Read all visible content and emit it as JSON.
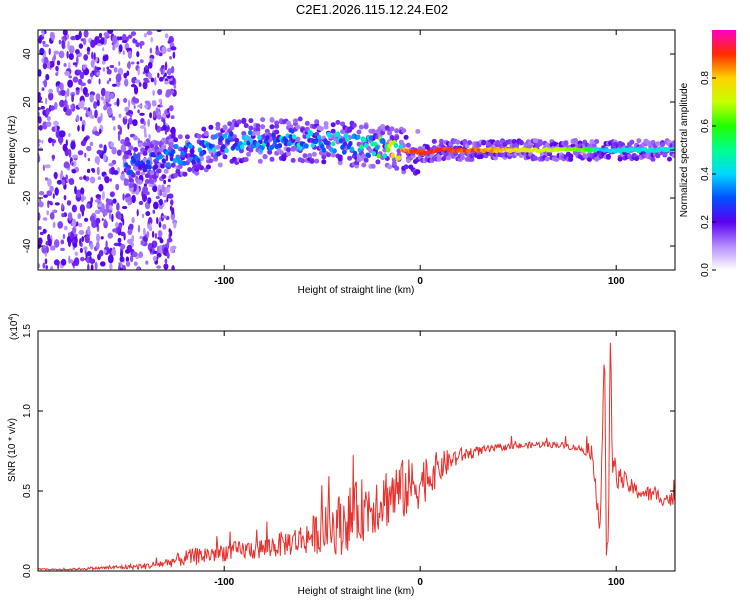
{
  "title": "C2E1.2026.115.12.24.E02",
  "chart_data": [
    {
      "type": "heatmap",
      "xlabel": "Height of straight line (km)",
      "ylabel": "Frequency (Hz)",
      "xlim": [
        -195,
        130
      ],
      "ylim": [
        -50,
        50
      ],
      "x_ticks": [
        -100,
        0,
        100
      ],
      "y_ticks": [
        -40,
        -20,
        0,
        20,
        40
      ],
      "colorbar": {
        "label": "Normalized spectral amplitude",
        "range": [
          0.0,
          1.0
        ],
        "ticks": [
          0.0,
          0.2,
          0.4,
          0.6,
          0.8
        ],
        "tick_labels": [
          "0.0",
          "0.2",
          "0.4",
          "0.6",
          "0.8"
        ]
      },
      "ridge": [
        {
          "x": -140,
          "f": -6,
          "amp": 0.3
        },
        {
          "x": -130,
          "f": -3,
          "amp": 0.35
        },
        {
          "x": -120,
          "f": -2,
          "amp": 0.38
        },
        {
          "x": -110,
          "f": 0,
          "amp": 0.4
        },
        {
          "x": -100,
          "f": 3,
          "amp": 0.4
        },
        {
          "x": -90,
          "f": 4,
          "amp": 0.42
        },
        {
          "x": -80,
          "f": 4,
          "amp": 0.45
        },
        {
          "x": -70,
          "f": 5,
          "amp": 0.45
        },
        {
          "x": -60,
          "f": 4,
          "amp": 0.45
        },
        {
          "x": -50,
          "f": 4,
          "amp": 0.45
        },
        {
          "x": -40,
          "f": 3,
          "amp": 0.48
        },
        {
          "x": -30,
          "f": 2,
          "amp": 0.5
        },
        {
          "x": -20,
          "f": 1,
          "amp": 0.6
        },
        {
          "x": -10,
          "f": 0,
          "amp": 0.85
        },
        {
          "x": 0,
          "f": -1,
          "amp": 0.95
        },
        {
          "x": 10,
          "f": 0,
          "amp": 0.95
        },
        {
          "x": 30,
          "f": 0,
          "amp": 0.9
        },
        {
          "x": 50,
          "f": 0,
          "amp": 0.8
        },
        {
          "x": 70,
          "f": 0,
          "amp": 0.72
        },
        {
          "x": 85,
          "f": 0,
          "amp": 0.65
        },
        {
          "x": 92,
          "f": 0,
          "amp": 0.4
        },
        {
          "x": 100,
          "f": 0,
          "amp": 0.45
        },
        {
          "x": 115,
          "f": 0,
          "amp": 0.45
        },
        {
          "x": 130,
          "f": 0,
          "amp": 0.45
        }
      ]
    },
    {
      "type": "line",
      "xlabel": "Height of straight line (km)",
      "ylabel": "SNR (10 * v/v)",
      "scale_label": "(x10",
      "scale_exponent": "4",
      "xlim": [
        -195,
        130
      ],
      "ylim": [
        0.0,
        1.5
      ],
      "x_ticks": [
        -100,
        0,
        100
      ],
      "y_ticks": [
        0.0,
        0.5,
        1.0,
        1.5
      ],
      "y_tick_labels": [
        "0.0",
        "0.5",
        "1.0",
        "1.5"
      ],
      "color": "#e8302c",
      "series": [
        {
          "name": "SNR",
          "x": [
            -195,
            -180,
            -160,
            -140,
            -130,
            -120,
            -110,
            -100,
            -90,
            -80,
            -70,
            -60,
            -50,
            -40,
            -30,
            -20,
            -10,
            0,
            10,
            20,
            30,
            40,
            50,
            60,
            70,
            80,
            85,
            88,
            90,
            92,
            93,
            94,
            95,
            96,
            97,
            98,
            100,
            105,
            110,
            120,
            130
          ],
          "values": [
            0.01,
            0.01,
            0.02,
            0.03,
            0.05,
            0.08,
            0.1,
            0.12,
            0.13,
            0.14,
            0.17,
            0.2,
            0.25,
            0.3,
            0.38,
            0.45,
            0.5,
            0.55,
            0.65,
            0.72,
            0.75,
            0.77,
            0.78,
            0.79,
            0.79,
            0.77,
            0.75,
            0.65,
            0.5,
            0.3,
            0.9,
            1.45,
            0.1,
            0.15,
            1.5,
            0.7,
            0.6,
            0.55,
            0.5,
            0.47,
            0.44
          ],
          "noise": [
            0.005,
            0.005,
            0.01,
            0.02,
            0.03,
            0.05,
            0.06,
            0.06,
            0.06,
            0.07,
            0.08,
            0.1,
            0.14,
            0.2,
            0.2,
            0.2,
            0.2,
            0.16,
            0.1,
            0.05,
            0.03,
            0.02,
            0.02,
            0.02,
            0.02,
            0.02,
            0.03,
            0.05,
            0.1,
            0.1,
            0.1,
            0.1,
            0.05,
            0.05,
            0.1,
            0.1,
            0.08,
            0.06,
            0.05,
            0.05,
            0.05
          ]
        }
      ]
    }
  ]
}
